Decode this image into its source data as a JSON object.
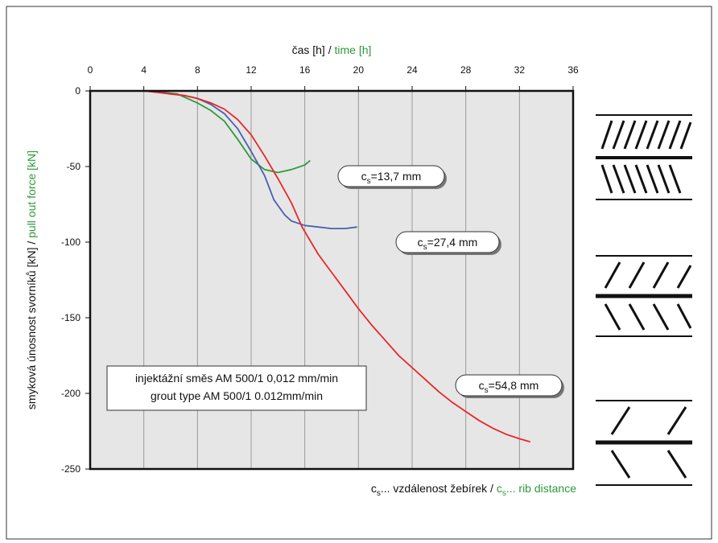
{
  "chart_data": {
    "type": "line",
    "x_label": [
      {
        "text": "čas [h] / "
      },
      {
        "text": "time [h]",
        "accent": true
      }
    ],
    "y_label": [
      {
        "text": "smyková únosnost svorníků [kN] / "
      },
      {
        "text": "pull out force [kN]",
        "accent": true
      }
    ],
    "bottom_label": [
      {
        "text": "c"
      },
      {
        "text": "s",
        "sub": true
      },
      {
        "text": "... vzdálenost žebírek / "
      },
      {
        "text": "c",
        "accent": true
      },
      {
        "text": "s",
        "sub": true,
        "accent": true
      },
      {
        "text": "... rib distance",
        "accent": true
      }
    ],
    "accent_color": "#2e9a3a",
    "xlim": [
      0,
      36
    ],
    "xticks": [
      0,
      4,
      8,
      12,
      16,
      20,
      24,
      28,
      32,
      36
    ],
    "ylim": [
      -250,
      0
    ],
    "yticks": [
      0,
      -50,
      -100,
      -150,
      -200,
      -250
    ],
    "grid_x": true,
    "series": [
      {
        "color": "#2e9a3a",
        "x": [
          0,
          3,
          5,
          5.5,
          6.5,
          8,
          9,
          10,
          11,
          12,
          13,
          14,
          15,
          16,
          16.4
        ],
        "values": [
          0,
          0,
          0,
          -1,
          -2,
          -8,
          -13,
          -20,
          -32,
          -45,
          -52,
          -54,
          -52,
          -49,
          -46
        ]
      },
      {
        "color": "#4a5fb0",
        "x": [
          0,
          3,
          5,
          6,
          7,
          8,
          9,
          10,
          11,
          12,
          13,
          13.7,
          14.5,
          15,
          16,
          17,
          18,
          19,
          19.9
        ],
        "values": [
          0,
          0,
          0,
          -2,
          -3,
          -5,
          -9,
          -15,
          -25,
          -40,
          -56,
          -72,
          -82,
          -86,
          -89,
          -90,
          -91,
          -91,
          -90
        ]
      },
      {
        "color": "#e8262a",
        "x": [
          0,
          4,
          5,
          6,
          7,
          8,
          9,
          10,
          11,
          12,
          13,
          14,
          15,
          15.8,
          17,
          18,
          19,
          20,
          21,
          22,
          23,
          24,
          25,
          26,
          27,
          28,
          29,
          30,
          31,
          32,
          32.8
        ],
        "values": [
          0,
          0,
          -1,
          -2,
          -3,
          -5,
          -8,
          -12,
          -19,
          -29,
          -43,
          -58,
          -74,
          -90,
          -108,
          -120,
          -132,
          -144,
          -155,
          -165,
          -175,
          -183,
          -191,
          -199,
          -206,
          -212,
          -218,
          -223,
          -227,
          -230,
          -232
        ]
      }
    ],
    "annotations": [
      [
        {
          "text": "c"
        },
        {
          "text": "s",
          "sub": true
        },
        {
          "text": "=13,7 mm"
        }
      ],
      [
        {
          "text": "c"
        },
        {
          "text": "s",
          "sub": true
        },
        {
          "text": "=27,4 mm"
        }
      ],
      [
        {
          "text": "c"
        },
        {
          "text": "s",
          "sub": true
        },
        {
          "text": "=54,8 mm"
        }
      ]
    ],
    "note": [
      "injektážní směs AM 500/1 0,012 mm/min",
      "grout type AM 500/1 0.012mm/min"
    ]
  }
}
